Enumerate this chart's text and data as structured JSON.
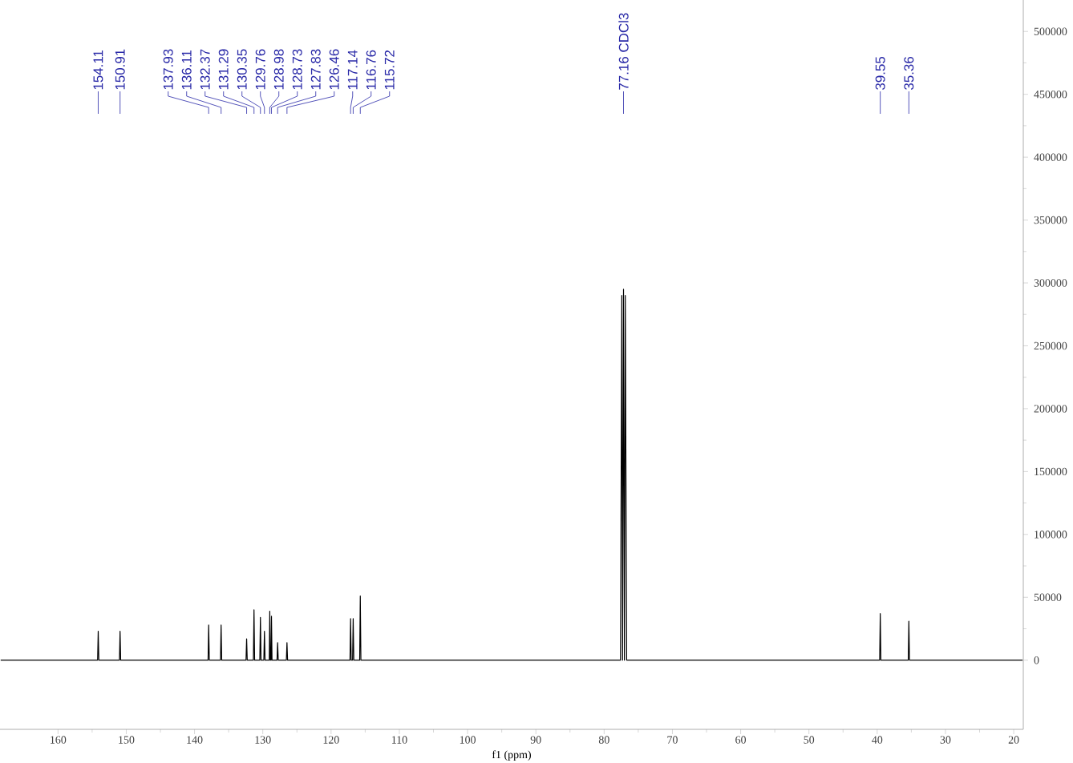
{
  "chart_data": {
    "type": "line",
    "xlabel": "f1 (ppm)",
    "xlim": [
      168.5,
      18.6
    ],
    "xticks": [
      160,
      150,
      140,
      130,
      120,
      110,
      100,
      90,
      80,
      70,
      60,
      50,
      40,
      30,
      20
    ],
    "ylim": [
      -55000,
      525000
    ],
    "yticks": [
      0,
      50000,
      100000,
      150000,
      200000,
      250000,
      300000,
      350000,
      400000,
      450000,
      500000
    ],
    "grid": false,
    "marker": "none",
    "line_style": "solid",
    "series": [
      {
        "color": "#000000",
        "x": [
          168.4,
          154.2,
          154.11,
          154.02,
          151.0,
          150.91,
          150.82,
          138.02,
          137.93,
          137.84,
          136.2,
          136.11,
          136.02,
          132.46,
          132.37,
          132.28,
          131.38,
          131.29,
          131.2,
          130.44,
          130.35,
          130.26,
          129.85,
          129.76,
          129.67,
          129.05,
          128.98,
          128.9,
          128.8,
          128.73,
          128.65,
          127.92,
          127.83,
          127.74,
          126.55,
          126.46,
          126.37,
          117.23,
          117.14,
          117.05,
          116.85,
          116.76,
          116.67,
          115.81,
          115.72,
          115.63,
          77.6,
          77.41,
          77.3,
          77.16,
          77.03,
          76.9,
          76.7,
          39.64,
          39.55,
          39.46,
          35.45,
          35.36,
          35.27,
          18.7
        ],
        "values": [
          0,
          0,
          23000,
          0,
          0,
          23000,
          0,
          0,
          28000,
          0,
          0,
          28000,
          0,
          0,
          17000,
          0,
          0,
          40000,
          0,
          0,
          34000,
          0,
          0,
          23000,
          0,
          0,
          39000,
          0,
          0,
          35000,
          0,
          0,
          14000,
          0,
          0,
          14000,
          0,
          0,
          33000,
          0,
          0,
          33000,
          0,
          0,
          51000,
          0,
          0,
          290000,
          0,
          295000,
          0,
          290000,
          0,
          0,
          37000,
          0,
          0,
          31000,
          0,
          0
        ]
      }
    ],
    "annotations": [
      {
        "text": "154.11",
        "x": 154.11
      },
      {
        "text": "150.91",
        "x": 150.91
      },
      {
        "text": "137.93",
        "x": 137.93
      },
      {
        "text": "136.11",
        "x": 136.11
      },
      {
        "text": "132.37",
        "x": 132.37
      },
      {
        "text": "131.29",
        "x": 131.29
      },
      {
        "text": "130.35",
        "x": 130.35
      },
      {
        "text": "129.76",
        "x": 129.76
      },
      {
        "text": "128.98",
        "x": 128.98
      },
      {
        "text": "128.73",
        "x": 128.73
      },
      {
        "text": "127.83",
        "x": 127.83
      },
      {
        "text": "126.46",
        "x": 126.46
      },
      {
        "text": "117.14",
        "x": 117.14
      },
      {
        "text": "116.76",
        "x": 116.76
      },
      {
        "text": "115.72",
        "x": 115.72
      },
      {
        "text": "77.16 CDCl3",
        "x": 77.16
      },
      {
        "text": "39.55",
        "x": 39.55
      },
      {
        "text": "35.36",
        "x": 35.36
      }
    ]
  }
}
